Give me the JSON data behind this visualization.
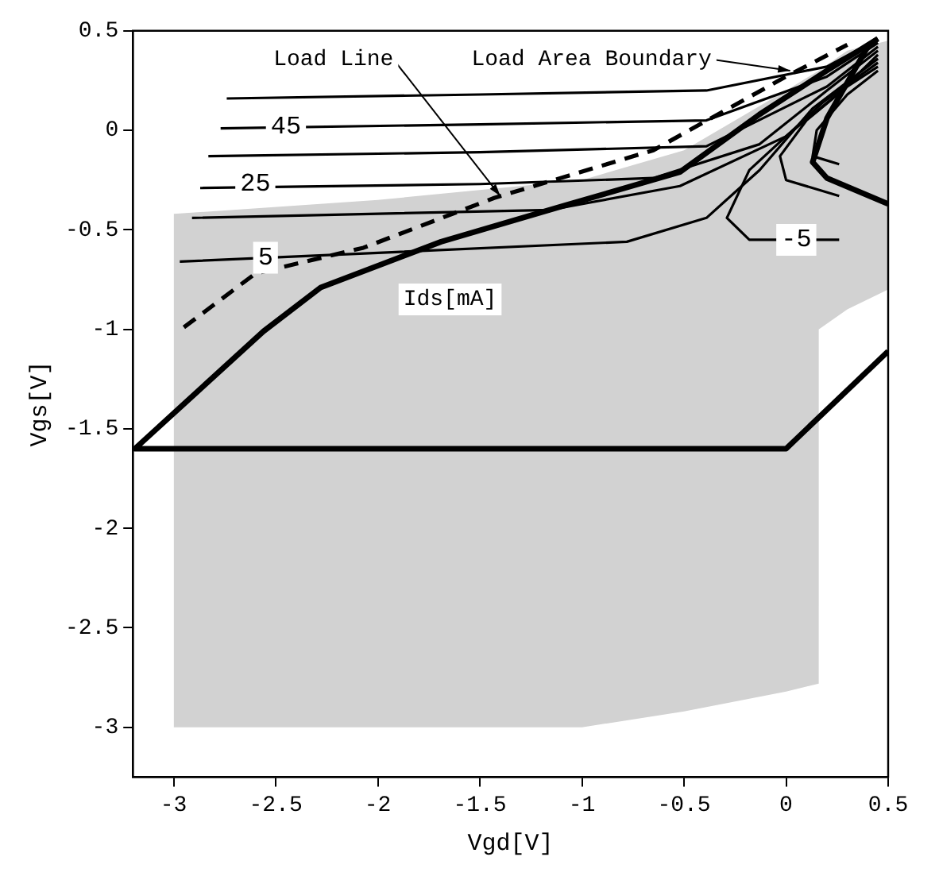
{
  "chart_data": {
    "type": "line",
    "xlabel": "Vgd[V]",
    "ylabel": "Vgs[V]",
    "xlim": [
      -3.2,
      0.5
    ],
    "ylim": [
      -3.25,
      0.5
    ],
    "xticks": [
      -3,
      -2.5,
      -2,
      -1.5,
      -1,
      -0.5,
      0,
      0.5
    ],
    "yticks": [
      -3,
      -2.5,
      -2,
      -1.5,
      -1,
      -0.5,
      0,
      0.5
    ],
    "grid": false,
    "legend": false,
    "marker": "none",
    "annotations": [
      {
        "text": "Load Line",
        "x": -1.4,
        "y": -0.33
      },
      {
        "text": "Load Area Boundary",
        "x": 0.02,
        "y": 0.3
      },
      {
        "text": "45",
        "x": -2.45,
        "y": 0.02
      },
      {
        "text": "25",
        "x": -2.6,
        "y": -0.27
      },
      {
        "text": "5",
        "x": -2.55,
        "y": -0.64
      },
      {
        "text": "-5",
        "x": 0.05,
        "y": -0.55
      },
      "Ids[mA]"
    ],
    "series": [
      {
        "color": "#d2d2d2",
        "x": [
          -3,
          -2,
          -1,
          -0.5,
          0,
          0.16,
          0.16,
          0.3,
          0.5
        ],
        "values": [
          null,
          null,
          null,
          null,
          null,
          null,
          null,
          null,
          null
        ],
        "upper": [
          -0.42,
          -0.35,
          -0.25,
          -0.1,
          0.2,
          0.3,
          0.3,
          0.4,
          0.45
        ],
        "lower": [
          -3,
          -3,
          -3,
          -2.92,
          -2.82,
          -2.78,
          -1.0,
          -0.9,
          -0.8
        ]
      },
      {
        "color": "#000000",
        "x": [
          -2.74,
          -1.5,
          -0.39,
          0.2,
          0.45
        ],
        "values": [
          0.16,
          0.18,
          0.2,
          0.32,
          0.46
        ]
      },
      {
        "color": "#000000",
        "x": [
          -2.77,
          -1.5,
          -0.39,
          0.2,
          0.45
        ],
        "values": [
          0.01,
          0.03,
          0.05,
          0.27,
          0.44
        ]
      },
      {
        "color": "#000000",
        "x": [
          -2.83,
          -1.5,
          -0.39,
          0.2,
          0.45
        ],
        "values": [
          -0.13,
          -0.11,
          -0.08,
          0.22,
          0.42
        ]
      },
      {
        "color": "#000000",
        "x": [
          -2.87,
          -1.5,
          -0.65,
          -0.13,
          0.2,
          0.45
        ],
        "values": [
          -0.29,
          -0.27,
          -0.24,
          -0.07,
          0.2,
          0.4
        ]
      },
      {
        "color": "#000000",
        "x": [
          -2.91,
          -1.16,
          -0.52,
          0,
          0.25,
          0.45
        ],
        "values": [
          -0.44,
          -0.4,
          -0.28,
          -0.03,
          0.18,
          0.38
        ]
      },
      {
        "color": "#000000",
        "x": [
          -2.97,
          -0.78,
          -0.39,
          -0.13,
          0.13,
          0.45
        ],
        "values": [
          -0.66,
          -0.56,
          -0.44,
          -0.2,
          0.11,
          0.36
        ]
      },
      {
        "color": "#000000",
        "x": [
          0.26,
          -0.18,
          -0.29,
          -0.18,
          0.18,
          0.45
        ],
        "values": [
          -0.55,
          -0.55,
          -0.44,
          -0.2,
          0.14,
          0.34
        ]
      },
      {
        "color": "#000000",
        "x": [
          0.26,
          0,
          -0.03,
          0.1,
          0.3,
          0.45
        ],
        "values": [
          -0.33,
          -0.25,
          -0.13,
          0.05,
          0.22,
          0.32
        ]
      },
      {
        "color": "#000000",
        "x": [
          0.26,
          0.13,
          0.15,
          0.3,
          0.45
        ],
        "values": [
          -0.17,
          -0.13,
          0.0,
          0.18,
          0.3
        ]
      },
      {
        "color": "#000000",
        "line_style": "dashed",
        "x": [
          -2.95,
          -2.6,
          -2.07,
          -1.43,
          -0.65,
          0,
          0.3
        ],
        "values": [
          -0.99,
          -0.72,
          -0.59,
          -0.34,
          -0.1,
          0.27,
          0.43
        ]
      },
      {
        "color": "#000000",
        "x": [
          0.5,
          0,
          -3.19,
          -2.56,
          -2.28,
          -1.69,
          -1.16,
          -0.52,
          -0.13,
          0.2,
          0.45
        ],
        "values": [
          -1.11,
          -1.6,
          -1.6,
          -1.01,
          -0.79,
          -0.56,
          -0.4,
          -0.21,
          0.08,
          0.3,
          0.46
        ]
      },
      {
        "color": "#000000",
        "x": [
          0.4,
          0.2,
          0.13,
          0.2,
          0.5
        ],
        "values": [
          0.42,
          0.06,
          -0.16,
          -0.24,
          -0.37
        ]
      }
    ]
  }
}
